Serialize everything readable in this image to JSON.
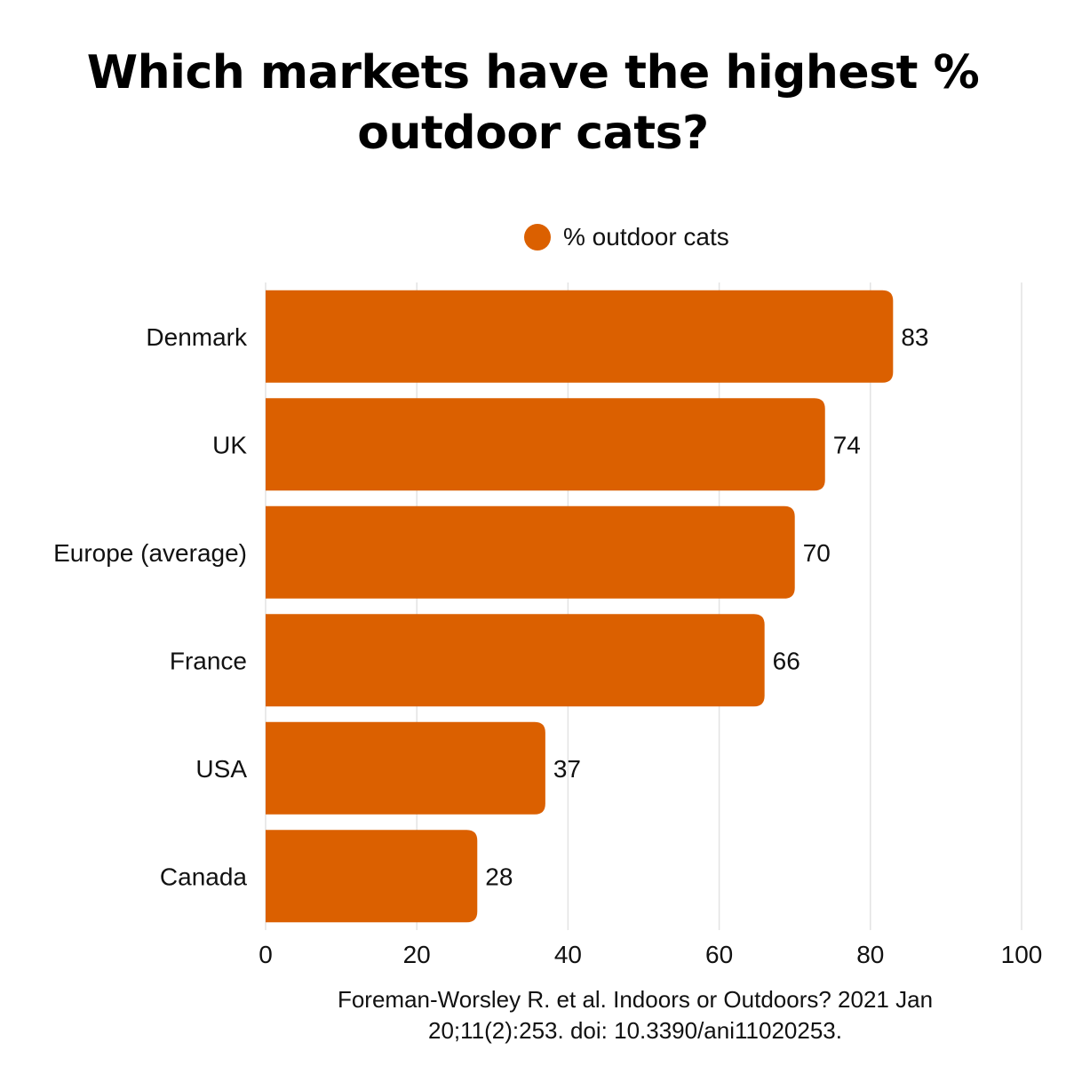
{
  "chart_data": {
    "type": "bar",
    "orientation": "horizontal",
    "title": "Which markets have the highest % outdoor cats?",
    "categories": [
      "Denmark",
      "UK",
      "Europe (average)",
      "France",
      "USA",
      "Canada"
    ],
    "series": [
      {
        "name": "% outdoor cats",
        "values": [
          83,
          74,
          70,
          66,
          37,
          28
        ],
        "color": "#DB6000"
      }
    ],
    "xlim": [
      0,
      100
    ],
    "xticks": [
      0,
      20,
      40,
      60,
      80,
      100
    ],
    "xlabel": "",
    "ylabel": "",
    "grid": "vertical",
    "legend": "top-center",
    "data_labels": true
  },
  "source": "Foreman-Worsley R. et al. Indoors or Outdoors? 2021 Jan 20;11(2):253. doi: 10.3390/ani11020253.",
  "colors": {
    "bar": "#DB6000",
    "gridline": "#E3E3E3",
    "text": "#111111"
  }
}
